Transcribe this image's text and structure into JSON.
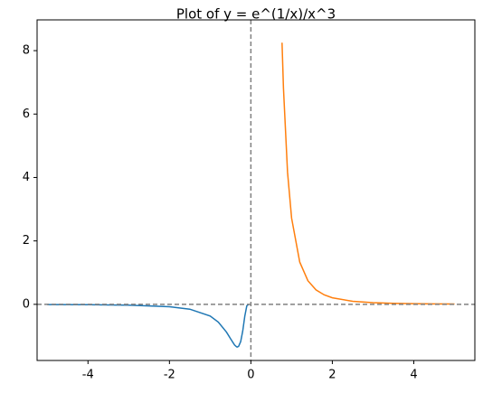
{
  "chart_data": {
    "type": "line",
    "title": "Plot of y = e^(1/x)/x^3",
    "series": [
      {
        "color": "#1f77b4",
        "x": [
          -5,
          -4,
          -3,
          -2,
          -1.5,
          -1,
          -0.8,
          -0.6,
          -0.5,
          -0.4,
          -0.35,
          -0.33,
          -0.3,
          -0.25,
          -0.2,
          -0.15,
          -0.1,
          -0.05
        ],
        "values": [
          -0.0066,
          -0.0122,
          -0.0265,
          -0.0758,
          -0.152,
          -0.368,
          -0.56,
          -0.875,
          -1.083,
          -1.283,
          -1.34,
          -1.344,
          -1.321,
          -1.172,
          -0.842,
          -0.377,
          -0.045,
          0
        ]
      },
      {
        "color": "#ff7f0e",
        "x": [
          0.765,
          0.8,
          0.9,
          1,
          1.2,
          1.4,
          1.6,
          1.8,
          2,
          2.5,
          3,
          3.5,
          4,
          4.5,
          5
        ],
        "values": [
          8.25,
          6.817,
          4.167,
          2.718,
          1.332,
          0.745,
          0.456,
          0.299,
          0.206,
          0.0955,
          0.0517,
          0.031,
          0.0201,
          0.0137,
          0.0098
        ]
      }
    ],
    "xlim": [
      -5.25,
      5.5
    ],
    "ylim": [
      -1.77,
      8.97
    ],
    "xticks": [
      -4,
      -2,
      0,
      2,
      4
    ],
    "yticks": [
      0,
      2,
      4,
      6,
      8
    ],
    "hlines": [
      0
    ],
    "vlines": [
      0
    ],
    "reference_color": "#808080"
  }
}
